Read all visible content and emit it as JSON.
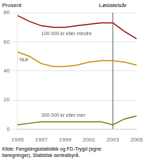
{
  "chart_data": {
    "type": "line",
    "x": [
      1995,
      1996,
      1997,
      1998,
      1999,
      2000,
      2001,
      2002,
      2003,
      2004,
      2005
    ],
    "series": [
      {
        "name": "100 000 kr eller mindre",
        "color": "#990000",
        "values": [
          78,
          74,
          71,
          70,
          70,
          71,
          72,
          73,
          73,
          67,
          62
        ]
      },
      {
        "name": "Null",
        "color": "#cc8800",
        "values": [
          53,
          50,
          45,
          43,
          43,
          44,
          46,
          47,
          47,
          46,
          44
        ]
      },
      {
        "name": "300 000 kr eller mer",
        "color": "#558800",
        "values": [
          3,
          4,
          5,
          5,
          5,
          5,
          5,
          5,
          3,
          7,
          9
        ]
      }
    ],
    "y_label": "Prosent",
    "xlim": [
      1995,
      2005
    ],
    "ylim": [
      0,
      80
    ],
    "xticks": [
      1995,
      1997,
      1999,
      2001,
      2003,
      2005
    ],
    "yticks": [
      0,
      20,
      40,
      60,
      80
    ],
    "grid": true,
    "annotations": [
      {
        "x": 2003,
        "text": "Løslatelsår",
        "color": "#555555"
      }
    ],
    "source": "Kilde: Fengslingsstatistikk og FD-Trygd (egne\nberegninger), Statistisk sentralbyrå."
  }
}
